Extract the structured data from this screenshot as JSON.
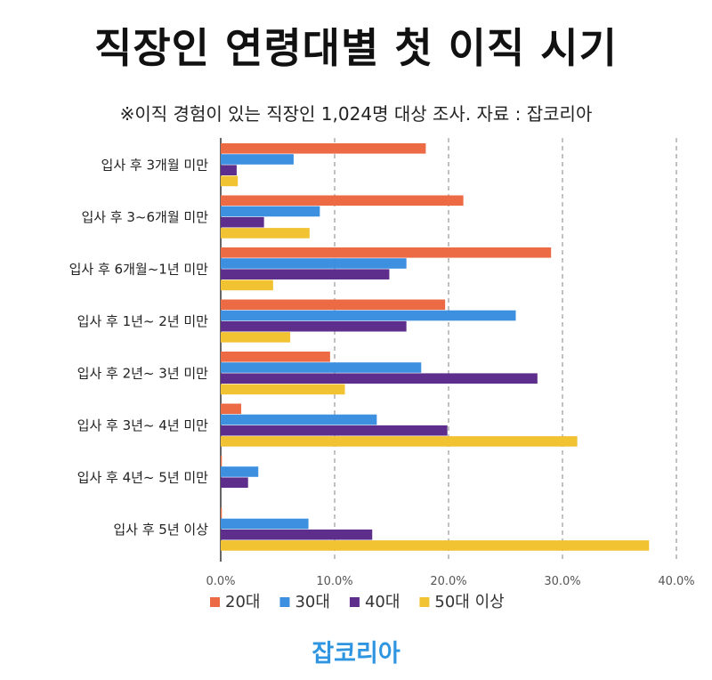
{
  "title": "직장인 연령대별 첫 이직 시기",
  "subtitle": "※이직 경험이 있는 직장인 1,024명 대상 조사. 자료 : 잡코리아",
  "brand": "잡코리아",
  "colors": {
    "20대": "#ec6b45",
    "30대": "#3d8fe0",
    "40대": "#5e2e8c",
    "50대 이상": "#f1c232",
    "grid": "#999999",
    "axis": "#333333"
  },
  "chart_data": {
    "type": "bar",
    "orientation": "horizontal",
    "categories": [
      "입사 후 3개월 미만",
      "입사 후 3~6개월 미만",
      "입사 후 6개월~1년 미만",
      "입사 후 1년~ 2년 미만",
      "입사 후 2년~ 3년 미만",
      "입사 후 3년~ 4년 미만",
      "입사 후 4년~ 5년 미만",
      "입사 후 5년 이상"
    ],
    "series": [
      {
        "name": "20대",
        "values": [
          18.0,
          21.3,
          29.0,
          19.7,
          9.6,
          1.8,
          0.1,
          0.1
        ]
      },
      {
        "name": "30대",
        "values": [
          6.4,
          8.7,
          16.3,
          25.9,
          17.6,
          13.7,
          3.3,
          7.7
        ]
      },
      {
        "name": "40대",
        "values": [
          1.4,
          3.8,
          14.8,
          16.3,
          27.8,
          19.9,
          2.4,
          13.3
        ]
      },
      {
        "name": "50대 이상",
        "values": [
          1.5,
          7.8,
          4.6,
          6.1,
          10.9,
          31.3,
          0.0,
          37.6
        ]
      }
    ],
    "xlim": [
      0,
      40
    ],
    "xticks": [
      "0.0%",
      "10.0%",
      "20.0%",
      "30.0%",
      "40.0%"
    ],
    "grid": "vertical dashed",
    "legend": "bottom"
  }
}
